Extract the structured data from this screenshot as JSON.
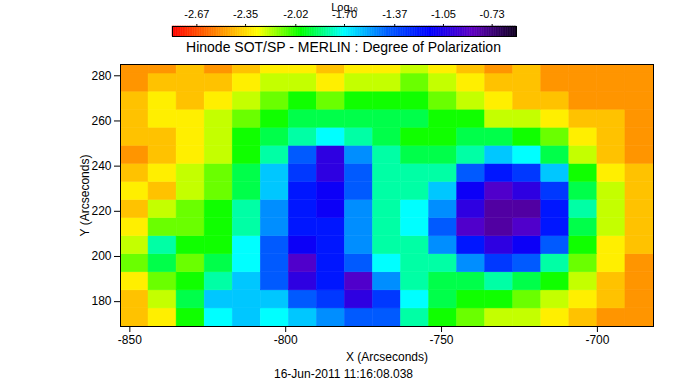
{
  "chart_data": {
    "type": "heatmap",
    "title": "Hinode SOT/SP - MERLIN : Degree of Polarization",
    "x_label": "X (Arcseconds)",
    "y_label": "Y (Arcseconds)",
    "caption": "16-Jun-2011 11:16:08.038",
    "xlim": [
      -853,
      -682
    ],
    "ylim": [
      169,
      285
    ],
    "xticks": [
      -850,
      -800,
      -750,
      -700
    ],
    "yticks": [
      180,
      200,
      220,
      240,
      260,
      280
    ],
    "x_edges": [
      -853,
      -844,
      -835,
      -826,
      -817,
      -808,
      -799,
      -790,
      -781,
      -772,
      -763,
      -754,
      -745,
      -736,
      -727,
      -718,
      -709,
      -700,
      -691,
      -682
    ],
    "y_edges": [
      169,
      177,
      185,
      193,
      201,
      209,
      217,
      225,
      233,
      241,
      249,
      257,
      265,
      273,
      281,
      285
    ],
    "values": [
      [
        -2.4,
        -2.3,
        -2.0,
        -1.7,
        -1.6,
        -1.7,
        -1.6,
        -1.5,
        -1.4,
        -1.4,
        -1.8,
        -2.0,
        -2.1,
        -2.2,
        -2.2,
        -2.3,
        -2.4,
        -2.5,
        -2.5
      ],
      [
        -2.4,
        -2.2,
        -1.9,
        -1.6,
        -1.6,
        -1.6,
        -1.4,
        -1.3,
        -1.0,
        -1.3,
        -1.7,
        -1.9,
        -2.0,
        -2.0,
        -2.1,
        -2.2,
        -2.3,
        -2.4,
        -2.5
      ],
      [
        -2.3,
        -2.1,
        -2.0,
        -1.8,
        -1.6,
        -1.4,
        -1.0,
        -1.2,
        -0.9,
        -1.5,
        -1.8,
        -1.9,
        -1.9,
        -1.8,
        -1.9,
        -2.0,
        -2.2,
        -2.4,
        -2.5
      ],
      [
        -2.1,
        -1.9,
        -2.1,
        -1.9,
        -1.7,
        -1.4,
        -0.9,
        -1.2,
        -1.4,
        -1.7,
        -1.8,
        -1.8,
        -1.5,
        -1.3,
        -1.4,
        -1.8,
        -2.1,
        -2.3,
        -2.5
      ],
      [
        -2.2,
        -1.8,
        -2.0,
        -2.0,
        -1.7,
        -1.4,
        -1.1,
        -1.2,
        -1.5,
        -1.8,
        -1.8,
        -1.5,
        -1.2,
        -1.0,
        -1.1,
        -1.4,
        -2.0,
        -2.3,
        -2.4
      ],
      [
        -2.3,
        -2.1,
        -2.1,
        -2.0,
        -1.8,
        -1.5,
        -1.2,
        -1.2,
        -1.5,
        -1.8,
        -1.7,
        -1.4,
        -0.9,
        -0.8,
        -0.9,
        -1.2,
        -1.9,
        -2.2,
        -2.4
      ],
      [
        -2.4,
        -2.2,
        -2.1,
        -2.0,
        -1.8,
        -1.5,
        -1.2,
        -1.1,
        -1.5,
        -1.8,
        -1.7,
        -1.5,
        -1.0,
        -0.8,
        -0.8,
        -1.2,
        -1.8,
        -2.2,
        -2.4
      ],
      [
        -2.3,
        -2.4,
        -2.2,
        -2.1,
        -1.9,
        -1.6,
        -1.2,
        -1.1,
        -1.4,
        -1.8,
        -1.8,
        -1.6,
        -1.1,
        -0.9,
        -1.0,
        -1.3,
        -1.9,
        -2.2,
        -2.4
      ],
      [
        -2.4,
        -2.3,
        -2.2,
        -2.1,
        -1.9,
        -1.6,
        -1.3,
        -1.0,
        -1.4,
        -1.8,
        -1.8,
        -1.8,
        -1.4,
        -1.2,
        -1.3,
        -1.6,
        -2.0,
        -2.3,
        -2.4
      ],
      [
        -2.5,
        -2.4,
        -2.3,
        -2.2,
        -2.0,
        -1.8,
        -1.4,
        -1.0,
        -1.5,
        -1.8,
        -1.9,
        -1.9,
        -1.8,
        -1.6,
        -1.7,
        -1.9,
        -2.2,
        -2.4,
        -2.5
      ],
      [
        -2.4,
        -2.4,
        -2.3,
        -2.2,
        -2.0,
        -1.9,
        -1.8,
        -1.7,
        -1.8,
        -1.9,
        -2.0,
        -2.0,
        -1.9,
        -1.9,
        -2.0,
        -2.1,
        -2.3,
        -2.4,
        -2.5
      ],
      [
        -2.4,
        -2.3,
        -2.3,
        -2.2,
        -2.1,
        -2.0,
        -1.9,
        -1.9,
        -1.9,
        -1.9,
        -1.9,
        -2.0,
        -2.0,
        -2.2,
        -2.2,
        -2.3,
        -2.4,
        -2.4,
        -2.5
      ],
      [
        -2.4,
        -2.3,
        -2.4,
        -2.3,
        -2.2,
        -2.1,
        -2.0,
        -2.1,
        -2.0,
        -2.0,
        -2.0,
        -2.1,
        -2.2,
        -2.3,
        -2.4,
        -2.4,
        -2.5,
        -2.5,
        -2.5
      ],
      [
        -2.5,
        -2.4,
        -2.4,
        -2.4,
        -2.3,
        -2.2,
        -2.2,
        -2.3,
        -2.2,
        -2.2,
        -2.1,
        -2.2,
        -2.3,
        -2.4,
        -2.4,
        -2.5,
        -2.5,
        -2.5,
        -2.5
      ],
      [
        -2.5,
        -2.5,
        -2.4,
        -2.5,
        -2.4,
        -2.3,
        -2.3,
        -2.4,
        -2.3,
        -2.3,
        -2.2,
        -2.3,
        -2.4,
        -2.5,
        -2.4,
        -2.5,
        -2.5,
        -2.5,
        -2.5
      ]
    ],
    "colorbar": {
      "label": "Log₁₀",
      "range": [
        -2.83,
        -0.57
      ],
      "ticks": [
        -2.67,
        -2.35,
        -2.02,
        {
          "value": -1.7,
          "label": "-1.70"
        },
        -1.37,
        -1.05,
        -0.73
      ]
    }
  }
}
